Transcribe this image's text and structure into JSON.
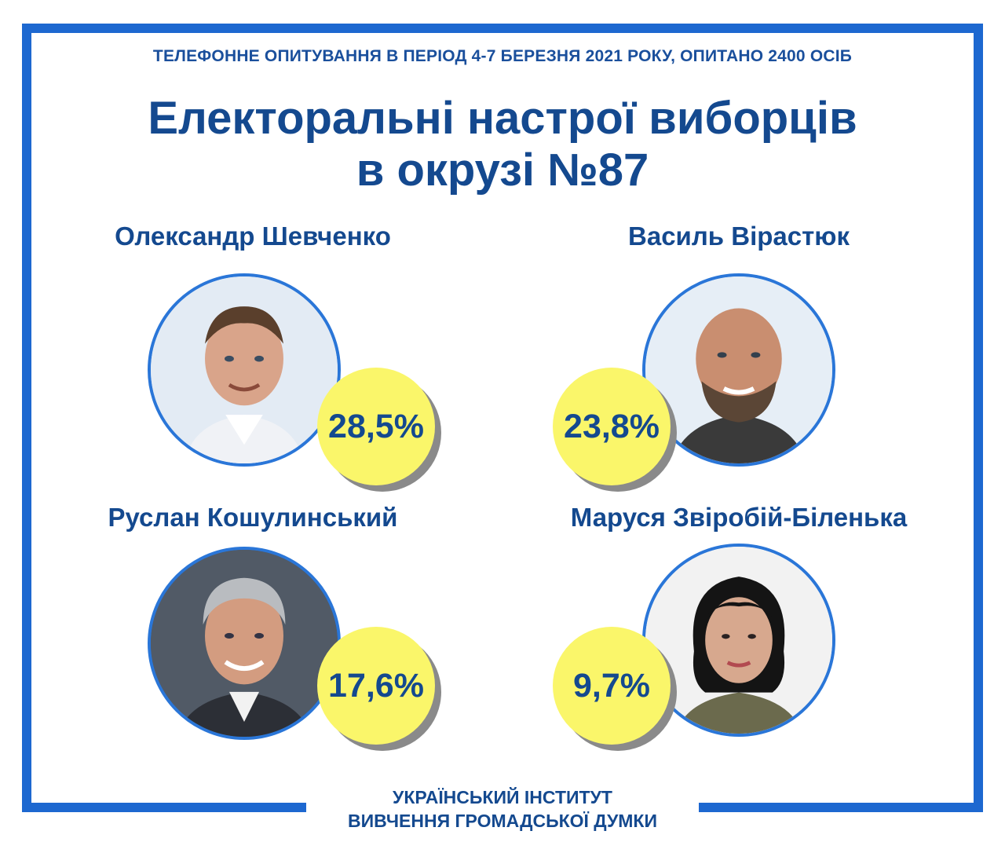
{
  "subtitle": "ТЕЛЕФОННЕ ОПИТУВАННЯ В ПЕРІОД 4-7 БЕРЕЗНЯ 2021 РОКУ, ОПИТАНО 2400 ОСІБ",
  "title_line1": "Електоральні настрої виборців",
  "title_line2": "в окрузі №87",
  "candidates": [
    {
      "name": "Олександр Шевченко",
      "percent": "28,5%",
      "value": 28.5
    },
    {
      "name": "Василь Вірастюк",
      "percent": "23,8%",
      "value": 23.8
    },
    {
      "name": "Руслан Кошулинський",
      "percent": "17,6%",
      "value": 17.6
    },
    {
      "name": "Маруся Звіробій-Біленька",
      "percent": "9,7%",
      "value": 9.7
    }
  ],
  "footer_line1": "УКРАЇНСЬКИЙ ІНСТИТУТ",
  "footer_line2": "ВИВЧЕННЯ ГРОМАДСЬКОЇ ДУМКИ",
  "colors": {
    "frame": "#1d68d0",
    "text": "#14498f",
    "badge": "#faf66a"
  }
}
